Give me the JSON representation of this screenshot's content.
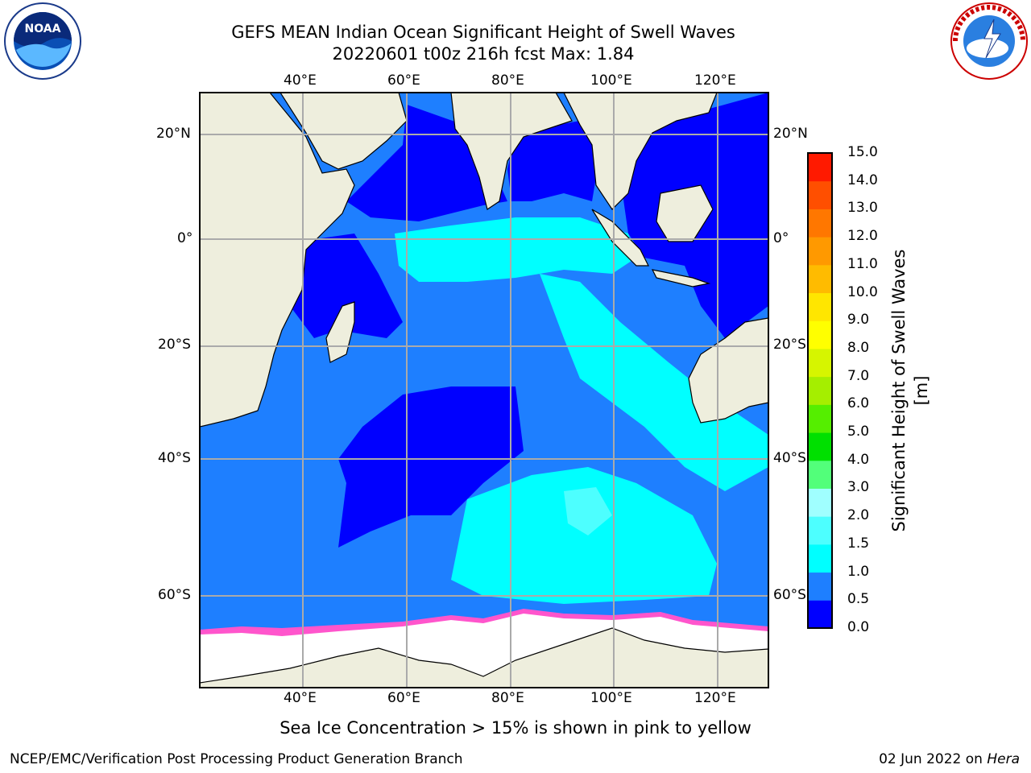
{
  "title_line1": "GEFS MEAN Indian Ocean Significant Height of Swell Waves",
  "title_line2": "20220601 t00z 216h fcst   Max: 1.84",
  "logos": {
    "left": {
      "icon": "noaa-logo",
      "text": "NOAA"
    },
    "right": {
      "icon": "national-weather-service-logo",
      "text": "NATIONAL WEATHER SERVICE"
    }
  },
  "map": {
    "lon_ticks_top": [
      "40°E",
      "60°E",
      "80°E",
      "100°E",
      "120°E"
    ],
    "lon_ticks_bottom": [
      "40°E",
      "60°E",
      "80°E",
      "100°E",
      "120°E"
    ],
    "lat_ticks_left": [
      "20°N",
      "0°",
      "20°S",
      "40°S",
      "60°S"
    ],
    "lat_ticks_right": [
      "20°N",
      "0°",
      "20°S",
      "40°S",
      "60°S"
    ],
    "lon_range": [
      20,
      130
    ],
    "lat_range": [
      -75,
      27
    ],
    "colors": {
      "land": "#eeeedd",
      "ocean_low": "#0000ff",
      "ocean_mid": "#1e7fff",
      "ocean_high": "#00ffff",
      "ice": "#ffffff"
    }
  },
  "colorbar": {
    "title": "Significant Height of Swell Waves [m]",
    "labels": [
      "0.0",
      "0.5",
      "1.0",
      "1.5",
      "2.0",
      "3.0",
      "4.0",
      "5.0",
      "6.0",
      "7.0",
      "8.0",
      "9.0",
      "10.0",
      "11.0",
      "12.0",
      "13.0",
      "14.0",
      "15.0"
    ],
    "colors": [
      "#0000ff",
      "#1e7fff",
      "#00ffff",
      "#4dffff",
      "#a0ffff",
      "#52ff7a",
      "#00e000",
      "#55ee00",
      "#a5ee00",
      "#d6f500",
      "#ffff00",
      "#ffe600",
      "#ffbb00",
      "#ff9900",
      "#ff7700",
      "#ff4f00",
      "#ff1a00"
    ]
  },
  "caption": "Sea Ice Concentration > 15% is shown in pink to yellow",
  "footer_left": "NCEP/EMC/Verification Post Processing Product Generation Branch",
  "footer_date": "02 Jun 2022 on",
  "footer_machine": "Hera"
}
